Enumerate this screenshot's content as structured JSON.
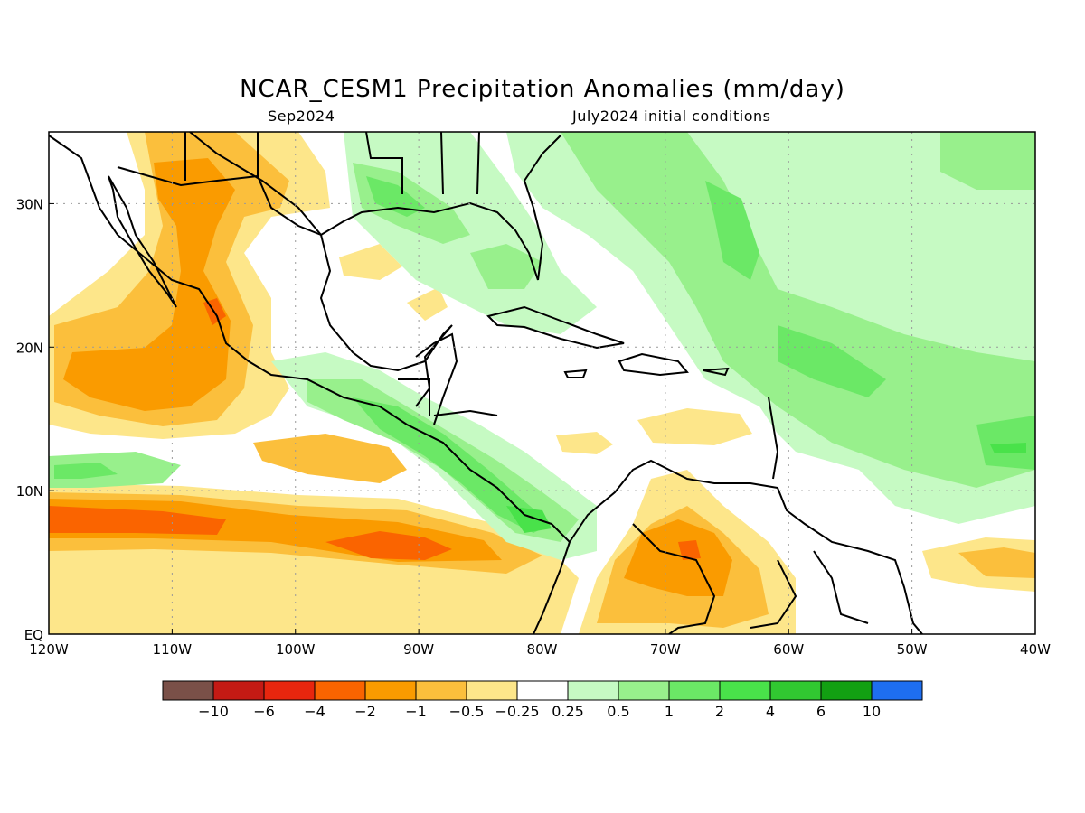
{
  "title": "NCAR_CESM1 Precipitation Anomalies (mm/day)",
  "subtitle_left": "Sep2024",
  "subtitle_right": "July2024 initial conditions",
  "map": {
    "lon_range": [
      -120,
      -40
    ],
    "lat_range": [
      0,
      35
    ],
    "x_ticks": [
      {
        "lon": -120,
        "label": "120W"
      },
      {
        "lon": -110,
        "label": "110W"
      },
      {
        "lon": -100,
        "label": "100W"
      },
      {
        "lon": -90,
        "label": "90W"
      },
      {
        "lon": -80,
        "label": "80W"
      },
      {
        "lon": -70,
        "label": "70W"
      },
      {
        "lon": -60,
        "label": "60W"
      },
      {
        "lon": -50,
        "label": "50W"
      },
      {
        "lon": -40,
        "label": "40W"
      }
    ],
    "y_ticks": [
      {
        "lat": 0,
        "label": "EQ"
      },
      {
        "lat": 10,
        "label": "10N"
      },
      {
        "lat": 20,
        "label": "20N"
      },
      {
        "lat": 30,
        "label": "30N"
      }
    ],
    "grid": "dotted"
  },
  "colorbar": {
    "colors": [
      "#7a5048",
      "#c41a14",
      "#e8260e",
      "#fa6400",
      "#fa9b00",
      "#fbbf3c",
      "#fde68a",
      "#ffffff",
      "#c6fac3",
      "#98f08c",
      "#6be866",
      "#49e24a",
      "#31c831",
      "#12a012",
      "#1e6ef0"
    ],
    "labels": [
      "−10",
      "−6",
      "−4",
      "−2",
      "−1",
      "−0.5",
      "−0.25",
      "0.25",
      "0.5",
      "1",
      "2",
      "4",
      "6",
      "10"
    ]
  }
}
